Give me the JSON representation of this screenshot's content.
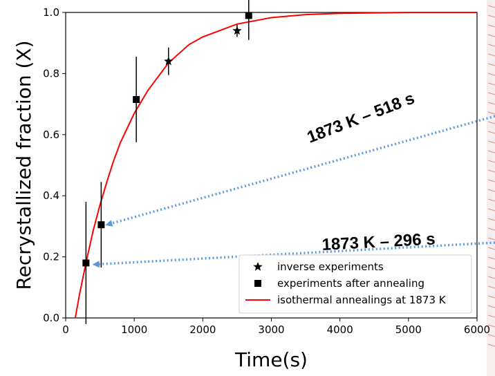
{
  "chart_data": {
    "type": "scatter",
    "xlabel": "Time(s)",
    "ylabel": "Recrystallized fraction (X)",
    "xlim": [
      0,
      6000
    ],
    "ylim": [
      0.0,
      1.0
    ],
    "xticks": [
      0,
      1000,
      2000,
      3000,
      4000,
      5000,
      6000
    ],
    "yticks": [
      0.0,
      0.2,
      0.4,
      0.6,
      0.8,
      1.0
    ],
    "xtick_labels": [
      "0",
      "1000",
      "2000",
      "3000",
      "4000",
      "5000",
      "6000"
    ],
    "ytick_labels": [
      "0.0",
      "0.2",
      "0.4",
      "0.6",
      "0.8",
      "1.0"
    ],
    "grid": false,
    "legend_position": "bottom-right",
    "series": [
      {
        "name": "inverse experiments",
        "marker": "star",
        "color": "#000000",
        "points": [
          {
            "x": 1500,
            "y": 0.84,
            "err": 0.045
          },
          {
            "x": 2500,
            "y": 0.94,
            "err": 0.02
          }
        ]
      },
      {
        "name": "experiments after annealing",
        "marker": "square",
        "color": "#000000",
        "points": [
          {
            "x": 296,
            "y": 0.18,
            "err": 0.2
          },
          {
            "x": 518,
            "y": 0.305,
            "err": 0.14
          },
          {
            "x": 1030,
            "y": 0.715,
            "err": 0.14
          },
          {
            "x": 2670,
            "y": 0.99,
            "err": 0.08
          }
        ]
      },
      {
        "name": "isothermal annealings at 1873 K",
        "type": "line",
        "color": "#ff0000",
        "points": [
          {
            "x": 140,
            "y": 0.0
          },
          {
            "x": 200,
            "y": 0.075
          },
          {
            "x": 300,
            "y": 0.185
          },
          {
            "x": 400,
            "y": 0.285
          },
          {
            "x": 500,
            "y": 0.37
          },
          {
            "x": 600,
            "y": 0.445
          },
          {
            "x": 700,
            "y": 0.515
          },
          {
            "x": 800,
            "y": 0.575
          },
          {
            "x": 1000,
            "y": 0.67
          },
          {
            "x": 1200,
            "y": 0.745
          },
          {
            "x": 1500,
            "y": 0.835
          },
          {
            "x": 1800,
            "y": 0.895
          },
          {
            "x": 2000,
            "y": 0.92
          },
          {
            "x": 2500,
            "y": 0.962
          },
          {
            "x": 3000,
            "y": 0.983
          },
          {
            "x": 3500,
            "y": 0.993
          },
          {
            "x": 4000,
            "y": 0.997
          },
          {
            "x": 5000,
            "y": 1.0
          },
          {
            "x": 6000,
            "y": 1.0
          }
        ]
      }
    ],
    "annotations": [
      {
        "text": "1873 K – 518 s",
        "target": {
          "x": 518,
          "y": 0.305
        },
        "color": "#5b9bd5"
      },
      {
        "text": "1873 K – 296 s",
        "target": {
          "x": 330,
          "y": 0.175
        },
        "color": "#5b9bd5"
      }
    ]
  }
}
